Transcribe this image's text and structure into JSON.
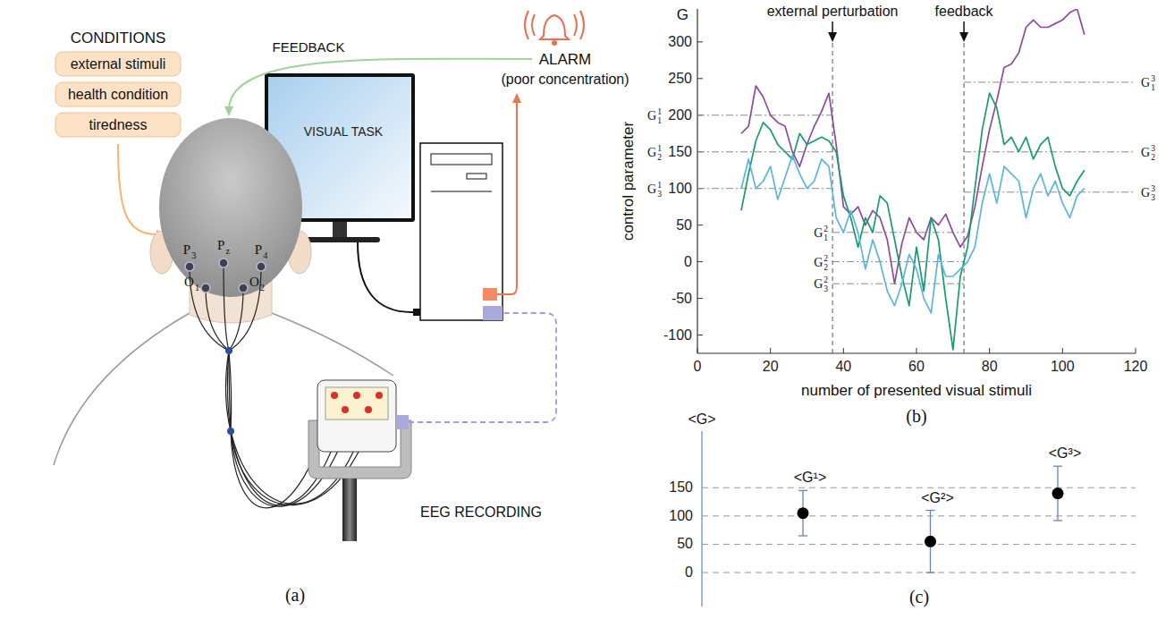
{
  "diagram": {
    "panel_label": "(a)",
    "conditions_title": "CONDITIONS",
    "conditions": [
      "external stimuli",
      "health condition",
      "tiredness"
    ],
    "feedback": "FEEDBACK",
    "alarm": "ALARM",
    "alarm_note": "(poor concentration)",
    "screen": "VISUAL TASK",
    "recording": "EEG RECORDING",
    "electrodes": [
      {
        "base": "P",
        "sub": "3"
      },
      {
        "base": "P",
        "sub": "z"
      },
      {
        "base": "P",
        "sub": "4"
      },
      {
        "base": "O",
        "sub": "1"
      },
      {
        "base": "O",
        "sub": "2"
      }
    ]
  },
  "chart_data": [
    {
      "type": "line",
      "panel_label": "(b)",
      "xlabel": "number of presented visual stimuli",
      "ylabel": "control parameter",
      "yname": "G",
      "xlim": [
        0,
        120
      ],
      "xticks": [
        0,
        20,
        40,
        60,
        80,
        100,
        120
      ],
      "ylim": [
        -125,
        345
      ],
      "yticks": [
        -100,
        -50,
        0,
        50,
        100,
        150,
        200,
        250,
        300
      ],
      "x": [
        12,
        14,
        16,
        18,
        20,
        22,
        24,
        26,
        28,
        30,
        32,
        34,
        36,
        38,
        40,
        42,
        44,
        46,
        48,
        50,
        52,
        54,
        56,
        58,
        60,
        62,
        64,
        66,
        68,
        70,
        72,
        74,
        76,
        78,
        80,
        82,
        84,
        86,
        88,
        90,
        92,
        94,
        96,
        98,
        100,
        102,
        104,
        106
      ],
      "series": [
        {
          "color": "#8e4a9f",
          "values": [
            175,
            185,
            240,
            225,
            200,
            190,
            185,
            150,
            130,
            160,
            185,
            205,
            230,
            160,
            75,
            65,
            75,
            50,
            70,
            60,
            30,
            -30,
            25,
            60,
            40,
            30,
            60,
            50,
            65,
            40,
            20,
            35,
            75,
            130,
            180,
            220,
            265,
            270,
            285,
            320,
            330,
            320,
            320,
            325,
            330,
            340,
            345,
            310
          ]
        },
        {
          "color": "#179c6d",
          "values": [
            70,
            120,
            165,
            190,
            180,
            160,
            150,
            140,
            175,
            160,
            165,
            170,
            165,
            150,
            90,
            60,
            20,
            60,
            40,
            90,
            80,
            30,
            -20,
            -60,
            20,
            -40,
            60,
            30,
            -50,
            -120,
            -20,
            20,
            100,
            180,
            230,
            210,
            160,
            170,
            150,
            170,
            140,
            160,
            170,
            130,
            100,
            90,
            110,
            125
          ]
        },
        {
          "color": "#5bb6df",
          "values": [
            100,
            140,
            100,
            110,
            130,
            85,
            115,
            145,
            120,
            100,
            110,
            140,
            130,
            60,
            40,
            70,
            40,
            -10,
            30,
            0,
            -40,
            -60,
            -30,
            10,
            -10,
            -50,
            -70,
            10,
            -20,
            -20,
            -10,
            0,
            20,
            80,
            120,
            80,
            130,
            120,
            110,
            60,
            100,
            120,
            90,
            110,
            80,
            60,
            90,
            100
          ]
        }
      ],
      "annotations": [
        {
          "text": "external perturbation",
          "x": 37
        },
        {
          "text": "feedback",
          "x": 73
        }
      ],
      "levels": [
        {
          "base": "G",
          "sub": "1",
          "sup": "1",
          "value": 200,
          "x": [
            0,
            37
          ]
        },
        {
          "base": "G",
          "sub": "2",
          "sup": "1",
          "value": 150,
          "x": [
            0,
            37
          ]
        },
        {
          "base": "G",
          "sub": "3",
          "sup": "1",
          "value": 100,
          "x": [
            0,
            37
          ]
        },
        {
          "base": "G",
          "sub": "1",
          "sup": "2",
          "value": 40,
          "x": [
            37,
            73
          ]
        },
        {
          "base": "G",
          "sub": "2",
          "sup": "2",
          "value": 0,
          "x": [
            37,
            73
          ]
        },
        {
          "base": "G",
          "sub": "3",
          "sup": "2",
          "value": -30,
          "x": [
            37,
            73
          ]
        },
        {
          "base": "G",
          "sub": "1",
          "sup": "3",
          "value": 245,
          "x": [
            73,
            120
          ]
        },
        {
          "base": "G",
          "sub": "2",
          "sup": "3",
          "value": 150,
          "x": [
            73,
            120
          ]
        },
        {
          "base": "G",
          "sub": "3",
          "sup": "3",
          "value": 95,
          "x": [
            73,
            120
          ]
        }
      ]
    },
    {
      "type": "scatter",
      "panel_label": "(c)",
      "ylabel": "<G>",
      "categories": [
        "<G¹>",
        "<G²>",
        "<G³>"
      ],
      "values": [
        105,
        55,
        140
      ],
      "errors": [
        40,
        55,
        48
      ],
      "color": "#000000",
      "ylim": [
        -60,
        250
      ],
      "yticks": [
        0,
        50,
        100,
        150
      ],
      "grid": true,
      "tick_labels": "y"
    }
  ]
}
